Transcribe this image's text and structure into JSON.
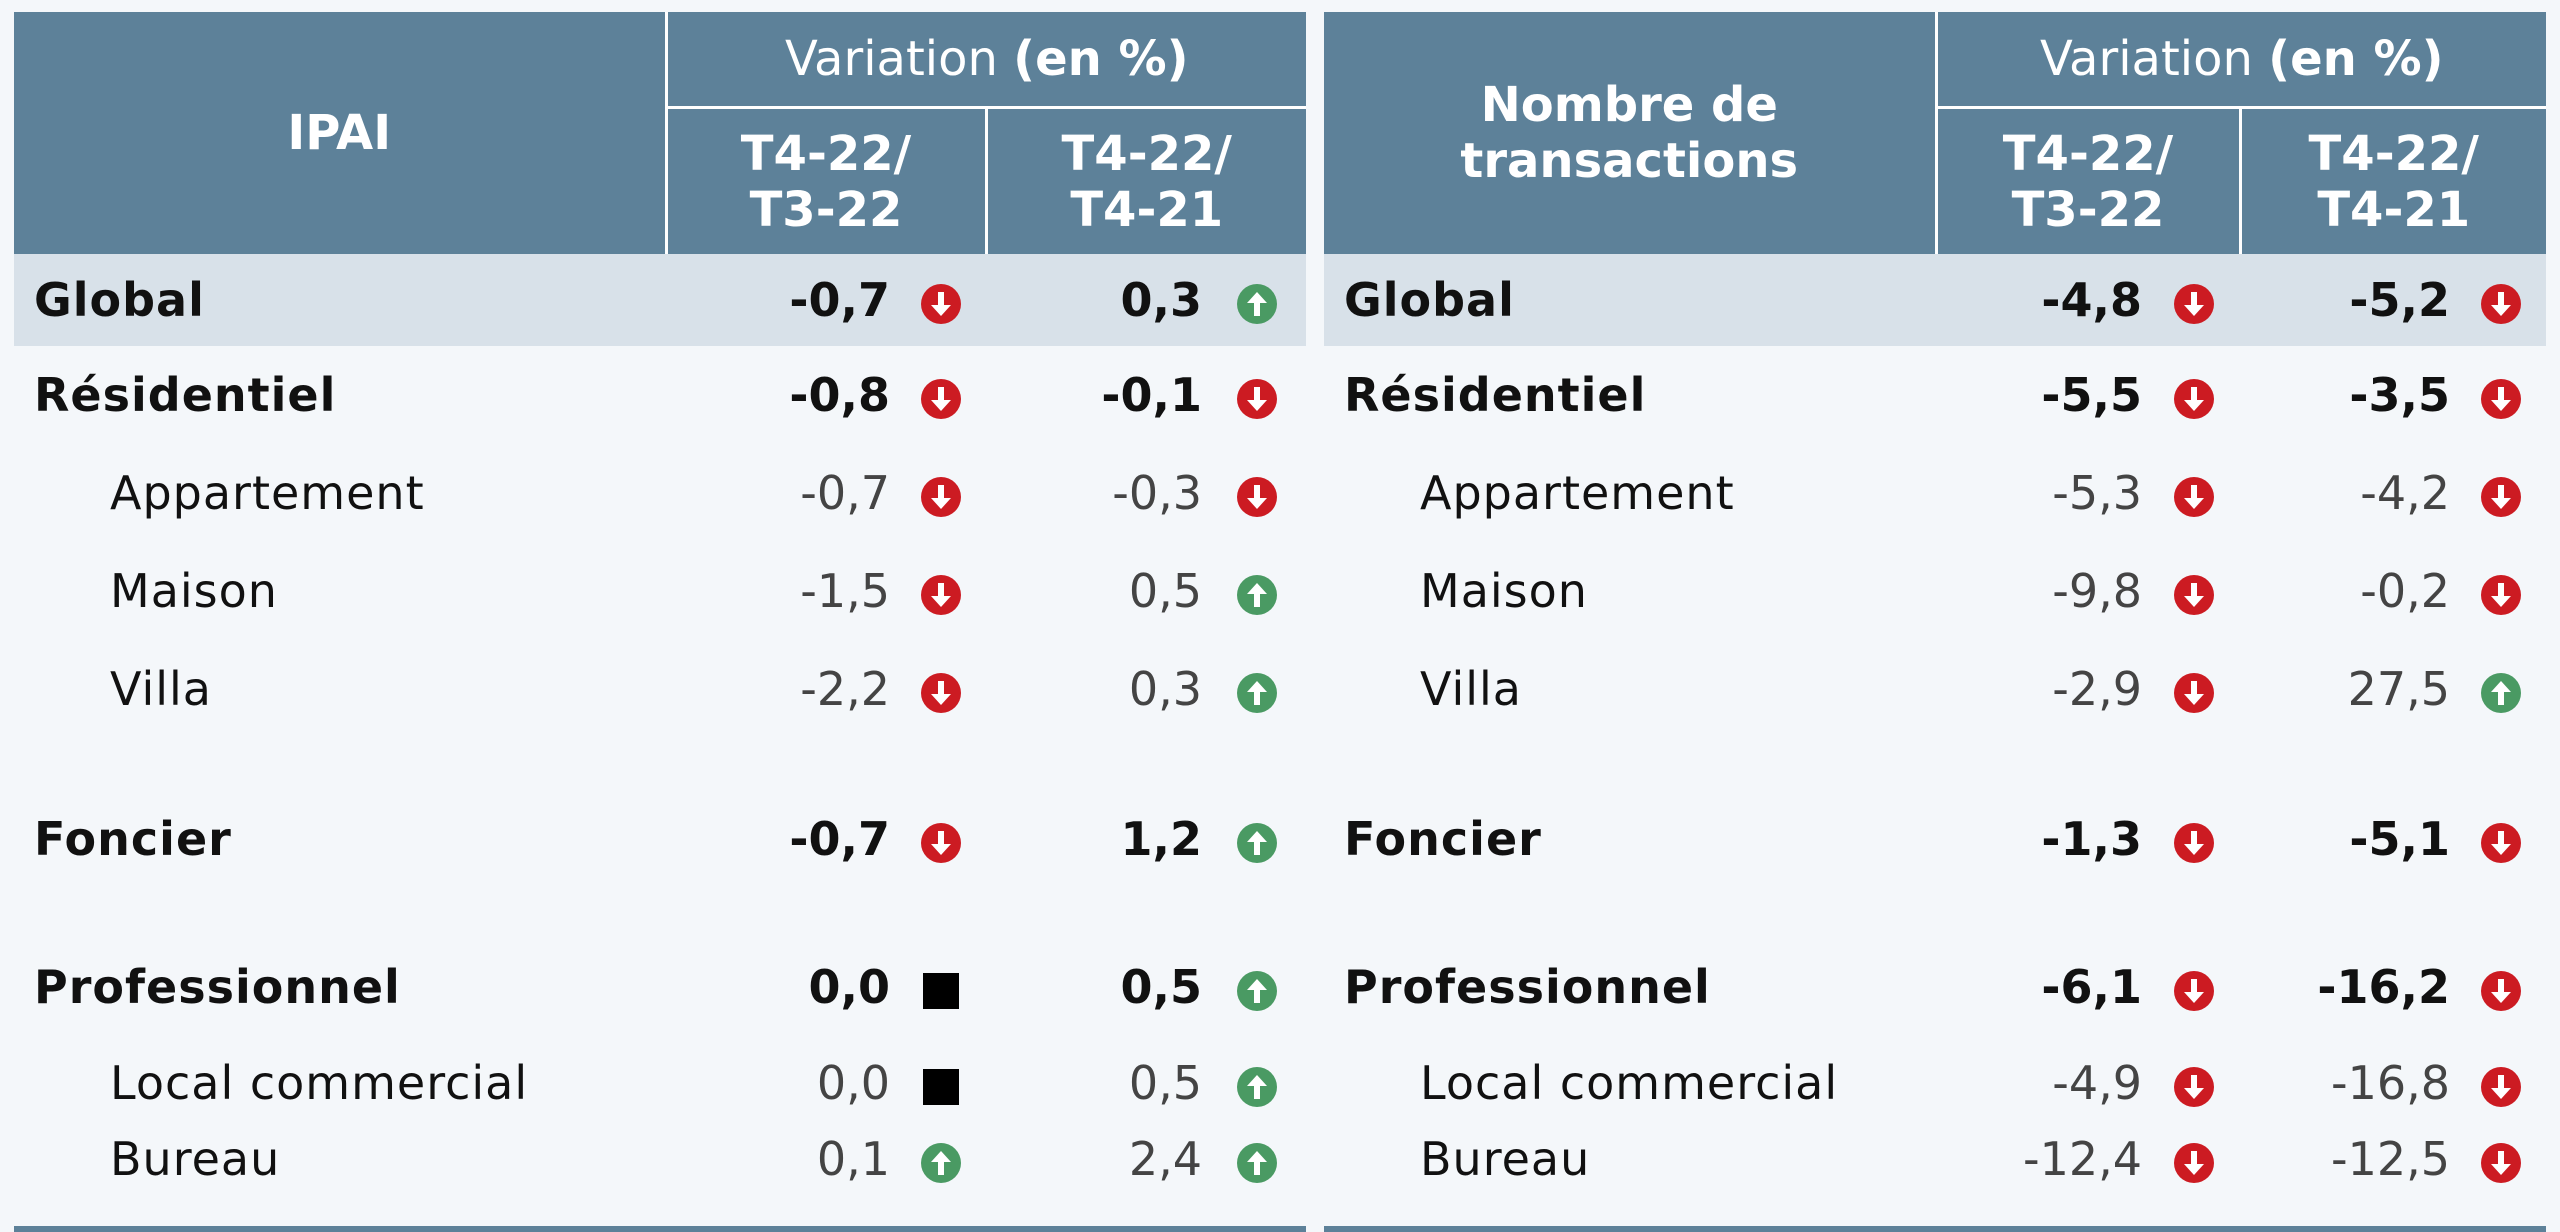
{
  "colors": {
    "header_bg": "#5d8199",
    "global_row_bg": "#d8e1e9",
    "down": "#cc1b22",
    "up": "#4a9a63",
    "stable": "#000000"
  },
  "left": {
    "title": "IPAI",
    "variation_label": "Variation",
    "variation_unit": "(en %)",
    "col1": "T4-22/ T3-22",
    "col2": "T4-22/ T4-21",
    "rows": [
      {
        "label": "Global",
        "v1": "-0,7",
        "i1": "arrow-down-icon",
        "v2": "0,3",
        "i2": "arrow-up-icon"
      },
      {
        "label": "Résidentiel",
        "v1": "-0,8",
        "i1": "arrow-down-icon",
        "v2": "-0,1",
        "i2": "arrow-down-icon"
      },
      {
        "label": "Appartement",
        "v1": "-0,7",
        "i1": "arrow-down-icon",
        "v2": "-0,3",
        "i2": "arrow-down-icon"
      },
      {
        "label": "Maison",
        "v1": "-1,5",
        "i1": "arrow-down-icon",
        "v2": "0,5",
        "i2": "arrow-up-icon"
      },
      {
        "label": "Villa",
        "v1": "-2,2",
        "i1": "arrow-down-icon",
        "v2": "0,3",
        "i2": "arrow-up-icon"
      },
      {
        "label": "Foncier",
        "v1": "-0,7",
        "i1": "arrow-down-icon",
        "v2": "1,2",
        "i2": "arrow-up-icon"
      },
      {
        "label": "Professionnel",
        "v1": "0,0",
        "i1": "stable-square-icon",
        "v2": "0,5",
        "i2": "arrow-up-icon"
      },
      {
        "label": "Local commercial",
        "v1": "0,0",
        "i1": "stable-square-icon",
        "v2": "0,5",
        "i2": "arrow-up-icon"
      },
      {
        "label": "Bureau",
        "v1": "0,1",
        "i1": "arrow-up-icon",
        "v2": "2,4",
        "i2": "arrow-up-icon"
      }
    ]
  },
  "right": {
    "title": "Nombre de transactions",
    "variation_label": "Variation",
    "variation_unit": "(en %)",
    "col1": "T4-22/ T3-22",
    "col2": "T4-22/ T4-21",
    "rows": [
      {
        "label": "Global",
        "v1": "-4,8",
        "i1": "arrow-down-icon",
        "v2": "-5,2",
        "i2": "arrow-down-icon"
      },
      {
        "label": "Résidentiel",
        "v1": "-5,5",
        "i1": "arrow-down-icon",
        "v2": "-3,5",
        "i2": "arrow-down-icon"
      },
      {
        "label": "Appartement",
        "v1": "-5,3",
        "i1": "arrow-down-icon",
        "v2": "-4,2",
        "i2": "arrow-down-icon"
      },
      {
        "label": "Maison",
        "v1": "-9,8",
        "i1": "arrow-down-icon",
        "v2": "-0,2",
        "i2": "arrow-down-icon"
      },
      {
        "label": "Villa",
        "v1": "-2,9",
        "i1": "arrow-down-icon",
        "v2": "27,5",
        "i2": "arrow-up-icon"
      },
      {
        "label": "Foncier",
        "v1": "-1,3",
        "i1": "arrow-down-icon",
        "v2": "-5,1",
        "i2": "arrow-down-icon"
      },
      {
        "label": "Professionnel",
        "v1": "-6,1",
        "i1": "arrow-down-icon",
        "v2": "-16,2",
        "i2": "arrow-down-icon"
      },
      {
        "label": "Local commercial",
        "v1": "-4,9",
        "i1": "arrow-down-icon",
        "v2": "-16,8",
        "i2": "arrow-down-icon"
      },
      {
        "label": "Bureau",
        "v1": "-12,4",
        "i1": "arrow-down-icon",
        "v2": "-12,5",
        "i2": "arrow-down-icon"
      }
    ]
  }
}
